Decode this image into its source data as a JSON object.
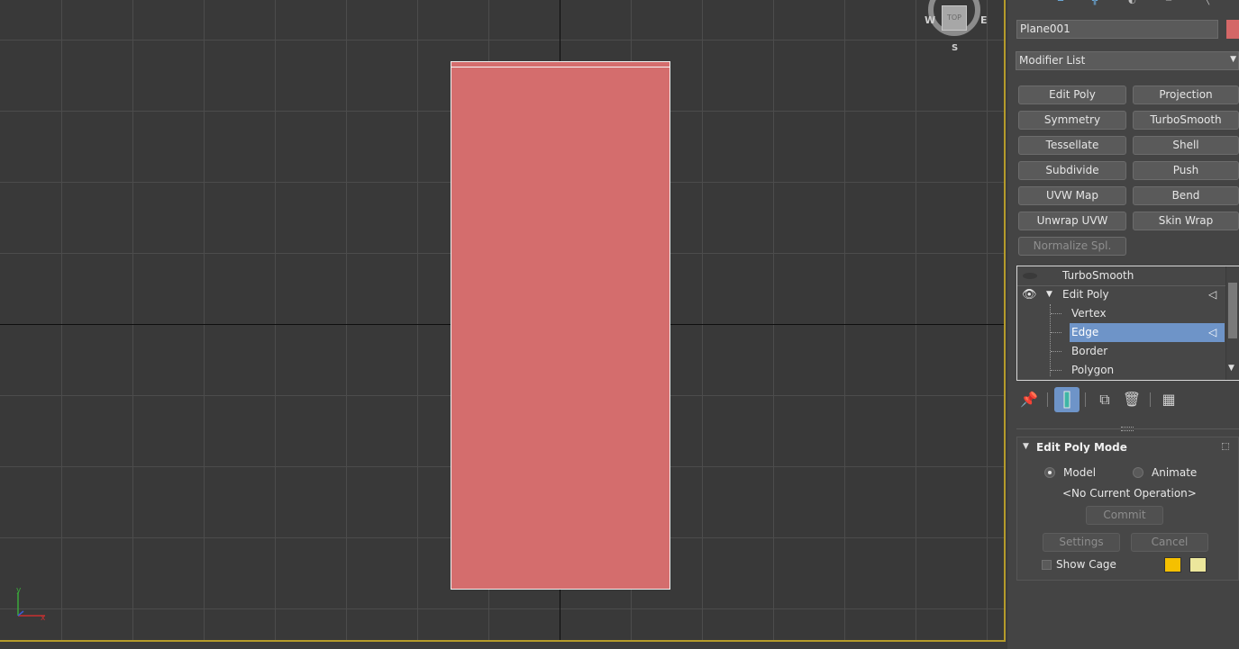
{
  "viewport": {
    "viewcube": {
      "face": "TOP",
      "west": "W",
      "east": "E",
      "south": "S"
    },
    "gizmo": {
      "y": "y",
      "x": "x"
    }
  },
  "panel": {
    "object_name": "Plane001",
    "object_color": "#d46767",
    "modifier_list": "Modifier List",
    "modifier_buttons": [
      "Edit Poly",
      "Projection",
      "Symmetry",
      "TurboSmooth",
      "Tessellate",
      "Shell",
      "Subdivide",
      "Push",
      "UVW Map",
      "Bend",
      "Unwrap UVW",
      "Skin Wrap",
      "Normalize Spl."
    ],
    "stack": {
      "items": [
        "TurboSmooth",
        "Edit Poly",
        "Vertex",
        "Edge",
        "Border",
        "Polygon"
      ],
      "selected": "Edge"
    },
    "rollout": {
      "title": "Edit Poly Mode",
      "model_label": "Model",
      "animate_label": "Animate",
      "selected_mode": "Model",
      "operation": "<No Current Operation>",
      "commit": "Commit",
      "settings": "Settings",
      "cancel": "Cancel",
      "show_cage": "Show Cage",
      "cage_colors": [
        "#f5c000",
        "#ece79c"
      ]
    }
  },
  "colors": {
    "accent": "#6e94c8",
    "viewport_border": "#b59b2a",
    "plane": "#d46d6d"
  }
}
